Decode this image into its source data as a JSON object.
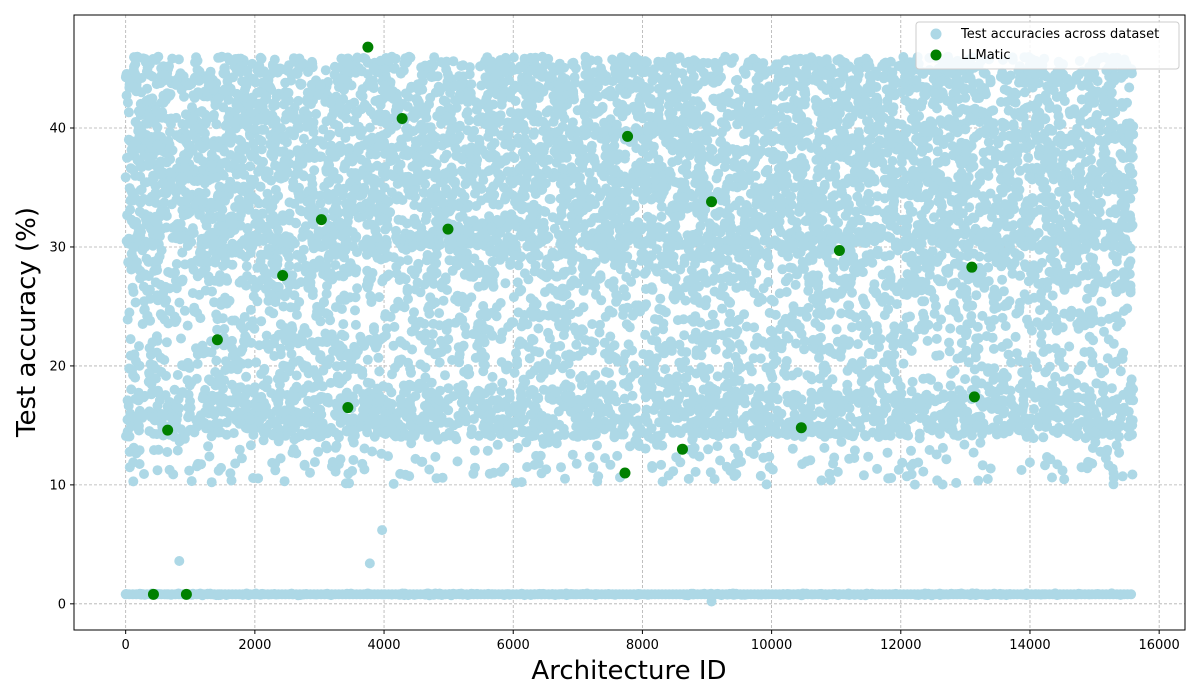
{
  "chart_data": {
    "type": "scatter",
    "title": "",
    "xlabel": "Architecture ID",
    "ylabel": "Test accuracy (%)",
    "xlim": [
      -800,
      16400
    ],
    "ylim": [
      -2.2,
      49.5
    ],
    "xticks": [
      0,
      2000,
      4000,
      6000,
      8000,
      10000,
      12000,
      14000,
      16000
    ],
    "yticks": [
      0,
      10,
      20,
      30,
      40
    ],
    "grid": true,
    "legend_position": "top-right",
    "series": [
      {
        "name": "Test accuracies across dataset",
        "color": "#add8e6",
        "description_of_distribution": "dense cloud",
        "n_points": 15625,
        "dense_band": [
          27,
          46
        ],
        "mid_band": [
          10,
          27
        ],
        "floor_value": 0.8,
        "outliers": [
          {
            "x": 830,
            "y": 3.6
          },
          {
            "x": 3780,
            "y": 3.4
          },
          {
            "x": 3970,
            "y": 6.2
          },
          {
            "x": 9070,
            "y": 0.2
          }
        ]
      },
      {
        "name": "LLMatic",
        "color": "#008000",
        "points": [
          {
            "x": 430,
            "y": 0.8
          },
          {
            "x": 650,
            "y": 14.6
          },
          {
            "x": 940,
            "y": 0.8
          },
          {
            "x": 1420,
            "y": 22.2
          },
          {
            "x": 2430,
            "y": 27.6
          },
          {
            "x": 3030,
            "y": 32.3
          },
          {
            "x": 3440,
            "y": 16.5
          },
          {
            "x": 3750,
            "y": 46.8
          },
          {
            "x": 4280,
            "y": 40.8
          },
          {
            "x": 4990,
            "y": 31.5
          },
          {
            "x": 7730,
            "y": 11.0
          },
          {
            "x": 7770,
            "y": 39.3
          },
          {
            "x": 8620,
            "y": 13.0
          },
          {
            "x": 9070,
            "y": 33.8
          },
          {
            "x": 10460,
            "y": 14.8
          },
          {
            "x": 11050,
            "y": 29.7
          },
          {
            "x": 13100,
            "y": 28.3
          },
          {
            "x": 13140,
            "y": 17.4
          }
        ]
      }
    ]
  }
}
